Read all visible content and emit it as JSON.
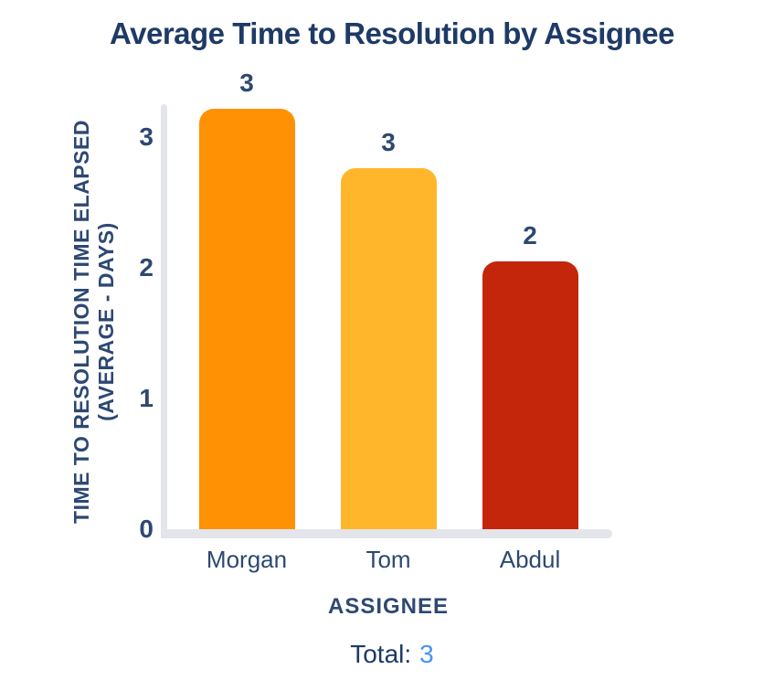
{
  "title": "Average Time to Resolution by Assignee",
  "chart_data": {
    "type": "bar",
    "title": "Average Time to Resolution by Assignee",
    "categories": [
      "Morgan",
      "Tom",
      "Abdul"
    ],
    "values": [
      3,
      3,
      2
    ],
    "data_labels": [
      "3",
      "3",
      "2"
    ],
    "estimated_values": [
      3.22,
      2.76,
      2.05
    ],
    "bar_colors": [
      "#FF9104",
      "#FFB62B",
      "#C3260A"
    ],
    "xlabel": "ASSIGNEE",
    "ylabel": "TIME TO RESOLUTION TIME ELAPSED (AVERAGE - DAYS)",
    "ylabel_line1": "TIME TO RESOLUTION TIME ELAPSED",
    "ylabel_line2": "(AVERAGE - DAYS)",
    "yticks": [
      "0",
      "1",
      "2",
      "3"
    ],
    "ylim": [
      0,
      3.25
    ],
    "grid": false,
    "legend": false
  },
  "footer": {
    "total_label": "Total:",
    "total_value": "3"
  },
  "colors": {
    "title_text": "#1E3A66",
    "chart_text": "#2D4872",
    "axis_line": "#E3E5EA",
    "total_value_blue": "#4793F0"
  }
}
